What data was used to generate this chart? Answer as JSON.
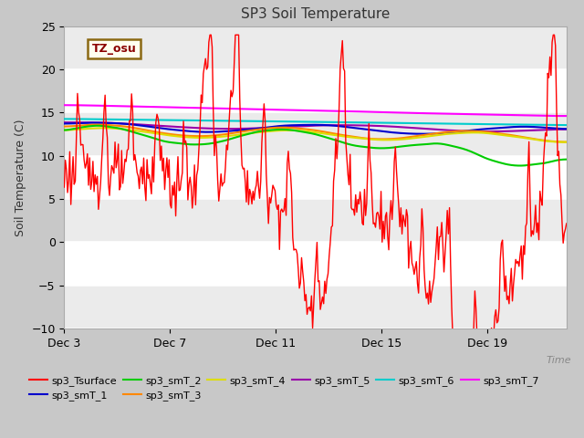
{
  "title": "SP3 Soil Temperature",
  "ylabel": "Soil Temperature (C)",
  "xlabel": "Time",
  "ylim": [
    -10,
    25
  ],
  "yticks": [
    -10,
    -5,
    0,
    5,
    10,
    15,
    20,
    25
  ],
  "xtick_labels": [
    "Dec 3",
    "Dec 7",
    "Dec 11",
    "Dec 15",
    "Dec 19"
  ],
  "xtick_positions": [
    0,
    4,
    8,
    12,
    16
  ],
  "annotation_text": "TZ_osu",
  "annotation_color": "#8B0000",
  "annotation_bg": "#FFFFF0",
  "annotation_border": "#8B6914",
  "fig_bg": "#C8C8C8",
  "plot_bg": "#FFFFFF",
  "grid_color": "#DDDDDD",
  "series_colors": {
    "sp3_Tsurface": "#FF0000",
    "sp3_smT_1": "#0000CC",
    "sp3_smT_2": "#00CC00",
    "sp3_smT_3": "#FF8800",
    "sp3_smT_4": "#DDDD00",
    "sp3_smT_5": "#9900AA",
    "sp3_smT_6": "#00CCCC",
    "sp3_smT_7": "#FF00FF"
  }
}
